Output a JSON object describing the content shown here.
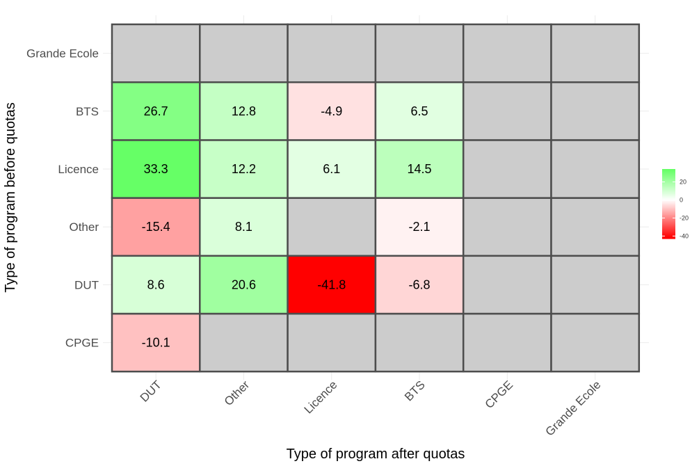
{
  "chart_data": {
    "type": "heatmap",
    "title": "",
    "xlabel": "Type of program after quotas",
    "ylabel": "Type of program before quotas",
    "x_categories": [
      "DUT",
      "Other",
      "Licence",
      "BTS",
      "CPGE",
      "Grande Ecole"
    ],
    "y_categories": [
      "CPGE",
      "DUT",
      "Other",
      "Licence",
      "BTS",
      "Grande Ecole"
    ],
    "values": [
      [
        -10.1,
        null,
        null,
        null,
        null,
        null
      ],
      [
        8.6,
        20.6,
        -41.8,
        -6.8,
        null,
        null
      ],
      [
        -15.4,
        8.1,
        null,
        -2.1,
        null,
        null
      ],
      [
        33.3,
        12.2,
        6.1,
        14.5,
        null,
        null
      ],
      [
        26.7,
        12.8,
        -4.9,
        6.5,
        null,
        null
      ],
      [
        null,
        null,
        null,
        null,
        null,
        null
      ]
    ],
    "color_scale": {
      "low_color": "#ff0000",
      "mid_color": "#ffffff",
      "high_color": "#66ff66",
      "na_color": "#cccccc",
      "limits": [
        -41.8,
        33.3
      ],
      "legend_ticks": [
        20,
        0,
        -20,
        -40
      ]
    },
    "legend_position": "right",
    "grid": true
  }
}
